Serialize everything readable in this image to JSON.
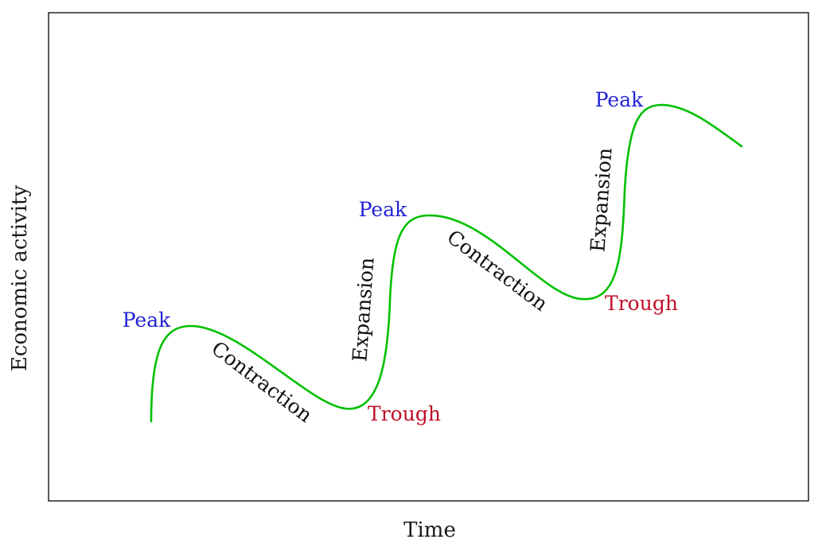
{
  "axes": {
    "x_label": "Time",
    "y_label": "Economic activity"
  },
  "colors": {
    "curve": "#00c000",
    "peak": "#2323d6",
    "trough": "#c0102a",
    "phase": "#111111",
    "frame": "#000000"
  },
  "labels": {
    "peak": "Peak",
    "trough": "Trough",
    "contraction": "Contraction",
    "expansion": "Expansion"
  }
}
